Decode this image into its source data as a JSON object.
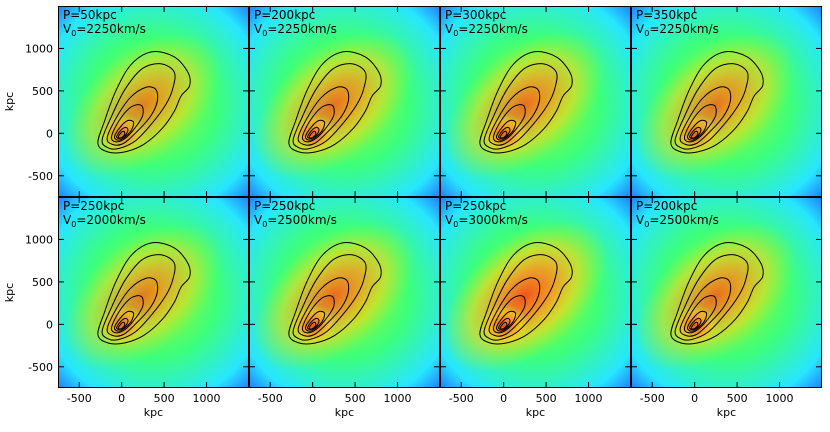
{
  "figure": {
    "x_axis_title": "kpc",
    "y_axis_title": "kpc",
    "x_ticks": [
      -500,
      0,
      500,
      1000
    ],
    "y_ticks": [
      -500,
      0,
      500,
      1000
    ],
    "x_range": [
      -750,
      1500
    ],
    "y_range": [
      -750,
      1500
    ],
    "colormap": [
      "#1e5aff",
      "#27e6ff",
      "#3dff7a",
      "#b9f21a",
      "#ffd21a",
      "#ff8c24",
      "#ff3a1a"
    ],
    "panels": [
      {
        "p_label": "P=50kpc",
        "v_label": "V",
        "v_sub": "0",
        "v_value": "=2250km/s",
        "intensity": 0.62
      },
      {
        "p_label": "P=200kpc",
        "v_label": "V",
        "v_sub": "0",
        "v_value": "=2250km/s",
        "intensity": 0.7
      },
      {
        "p_label": "P=300kpc",
        "v_label": "V",
        "v_sub": "0",
        "v_value": "=2250km/s",
        "intensity": 0.72
      },
      {
        "p_label": "P=350kpc",
        "v_label": "V",
        "v_sub": "0",
        "v_value": "=2250km/s",
        "intensity": 0.68
      },
      {
        "p_label": "P=250kpc",
        "v_label": "V",
        "v_sub": "0",
        "v_value": "=2000km/s",
        "intensity": 0.64
      },
      {
        "p_label": "P=250kpc",
        "v_label": "V",
        "v_sub": "0",
        "v_value": "=2500km/s",
        "intensity": 0.74
      },
      {
        "p_label": "P=250kpc",
        "v_label": "V",
        "v_sub": "0",
        "v_value": "=3000km/s",
        "intensity": 0.86
      },
      {
        "p_label": "P=200kpc",
        "v_label": "V",
        "v_sub": "0",
        "v_value": "=2500km/s",
        "intensity": 0.72
      }
    ]
  }
}
